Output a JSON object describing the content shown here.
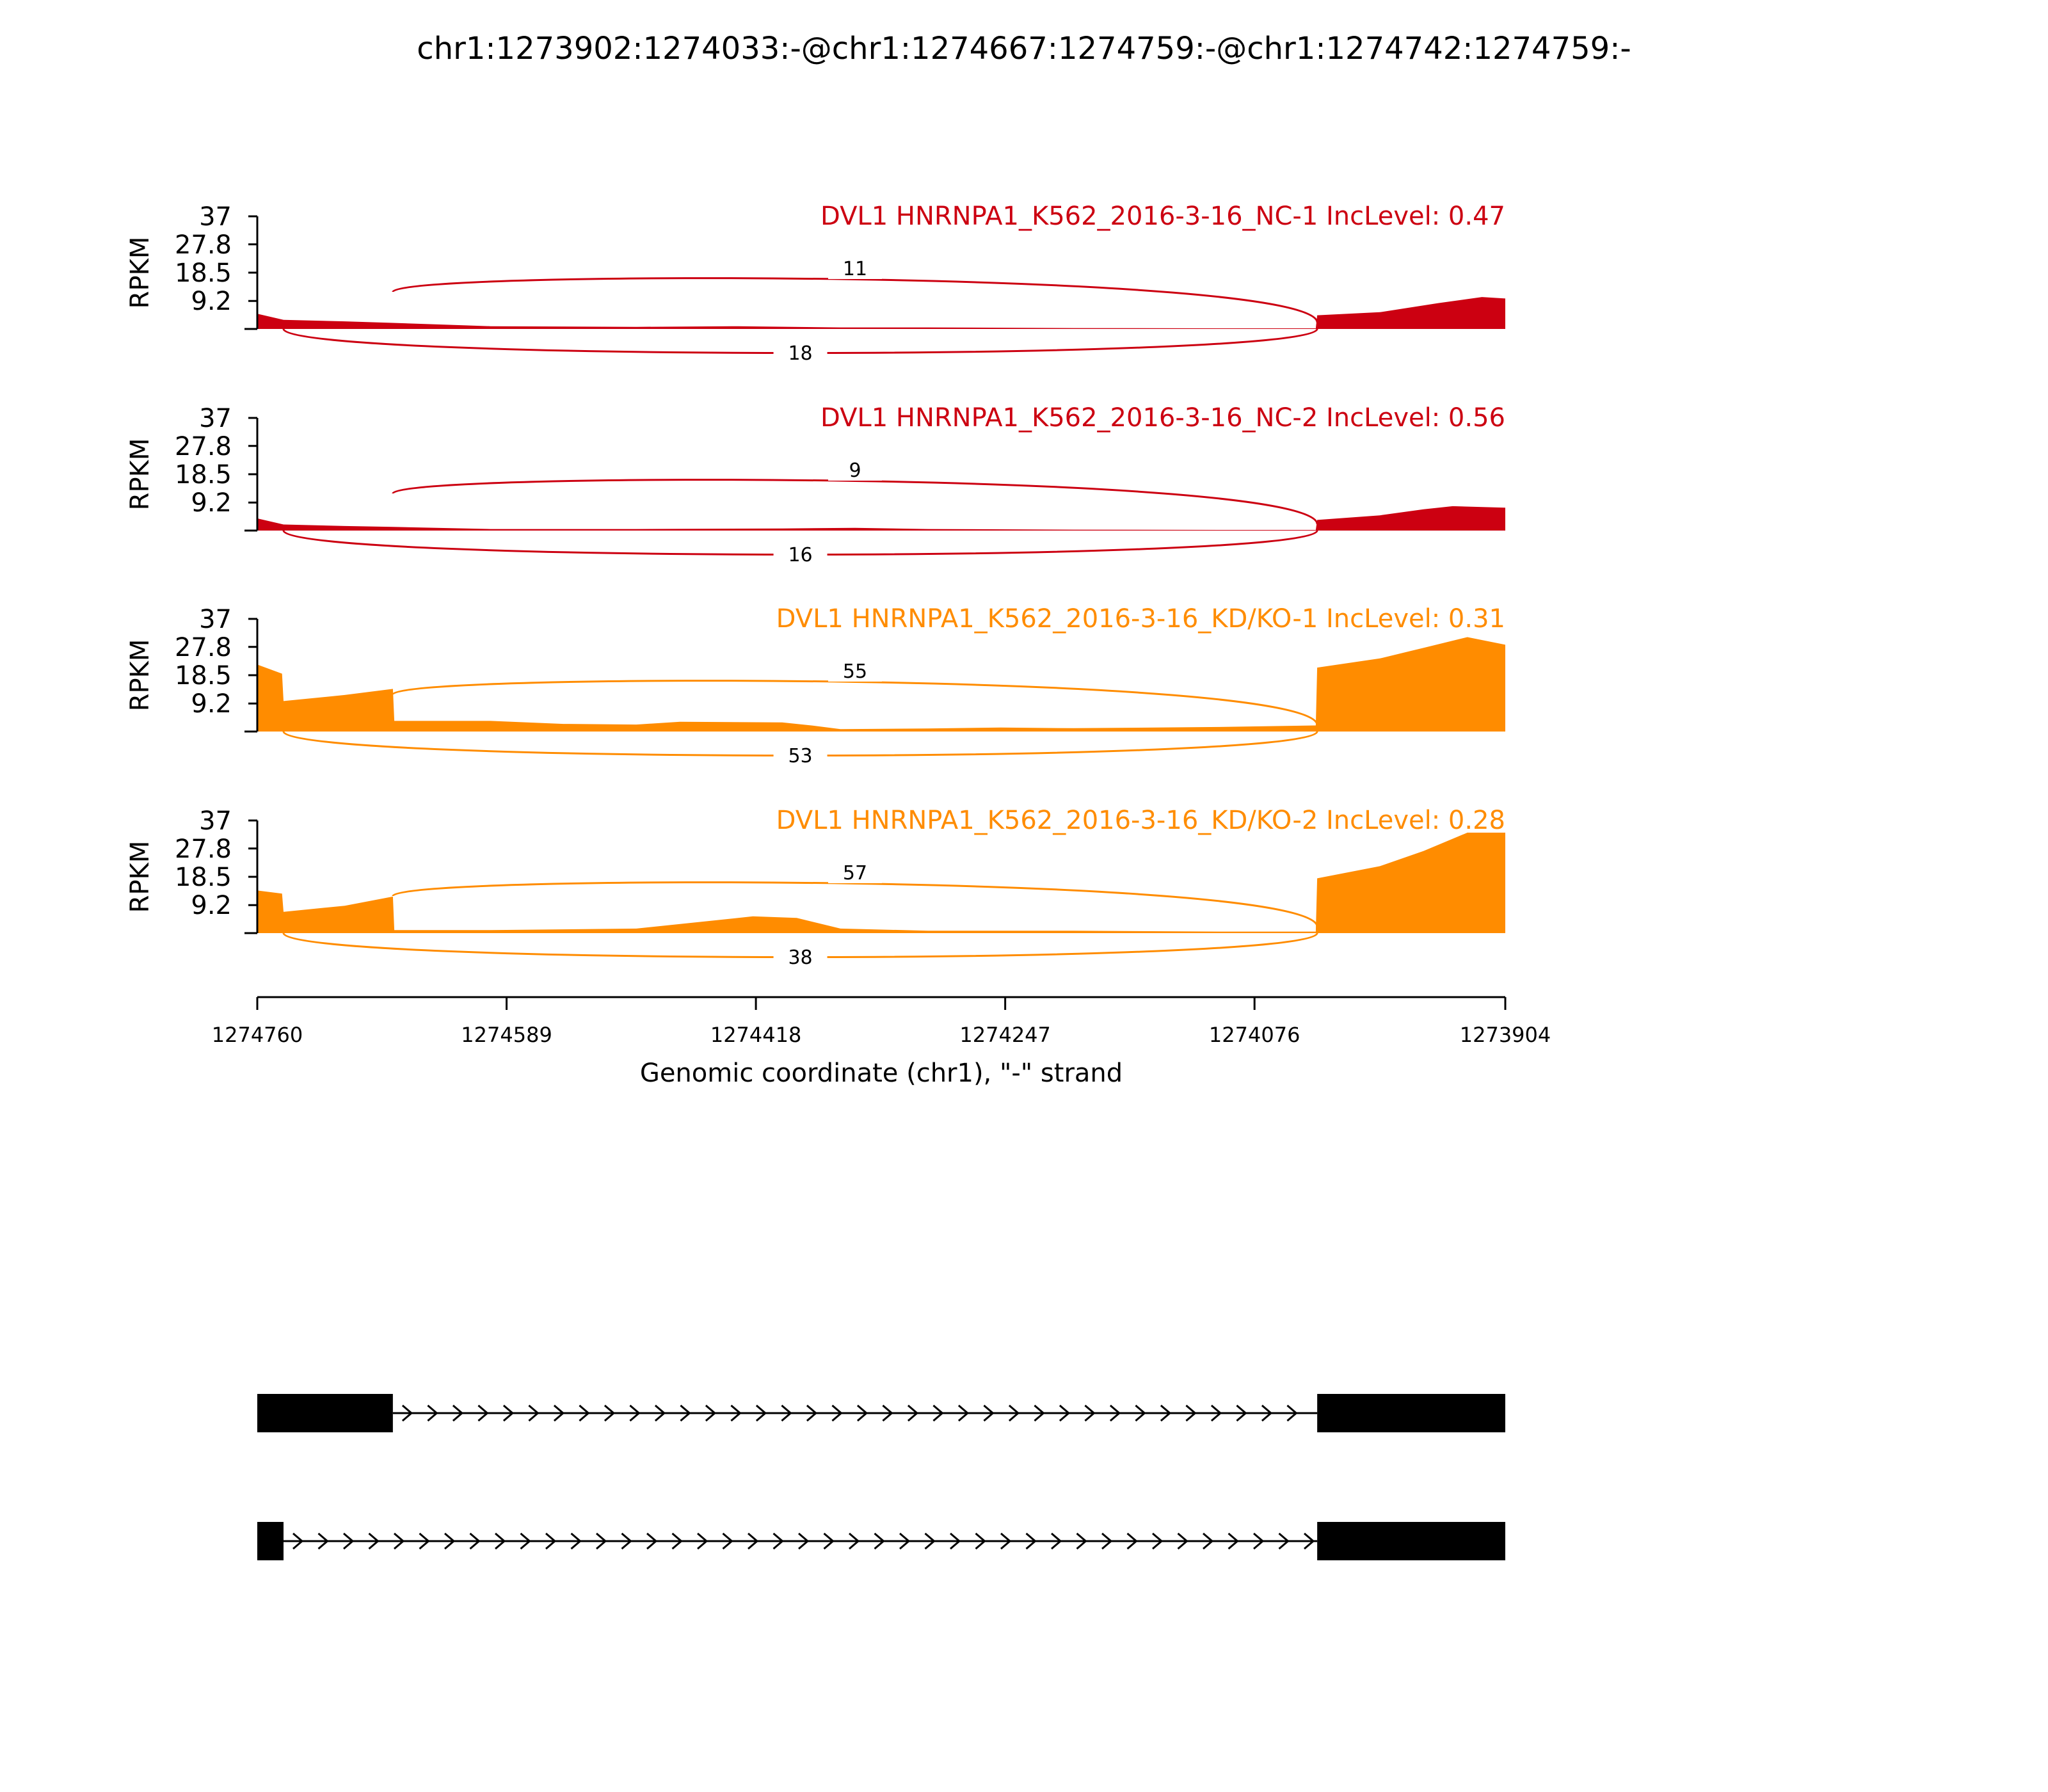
{
  "chart_data": {
    "type": "area",
    "title": "chr1:1273902:1274033:-@chr1:1274667:1274759:-@chr1:1274742:1274759:-",
    "xlabel": "Genomic coordinate (chr1), \"-\" strand",
    "ylabel": "RPKM",
    "xlim": [
      1274760,
      1273904
    ],
    "x_ticks": [
      "1274760",
      "1274589",
      "1274418",
      "1274247",
      "1274076",
      "1273904"
    ],
    "ylim": [
      0,
      37
    ],
    "y_ticks": [
      "37",
      "27.8",
      "18.5",
      "9.2"
    ],
    "grid": false,
    "upstream_exon": [
      1274760,
      1274667
    ],
    "short_exon": [
      1274760,
      1274742
    ],
    "downstream_exon": [
      1274033,
      1273904
    ],
    "tracks": [
      {
        "label": "DVL1 HNRNPA1_K562_2016-3-16_NC-1 IncLevel: 0.47",
        "color": "#cc0011",
        "inclusion_junction_reads": "11",
        "skipping_junction_reads": "18",
        "coverage_profile": [
          [
            1274760,
            5.0
          ],
          [
            1274742,
            3.0
          ],
          [
            1274700,
            2.5
          ],
          [
            1274667,
            2.0
          ],
          [
            1274600,
            0.9
          ],
          [
            1274500,
            0.7
          ],
          [
            1274430,
            0.9
          ],
          [
            1274360,
            0.5
          ],
          [
            1274300,
            0.5
          ],
          [
            1274200,
            0.3
          ],
          [
            1274100,
            0.2
          ],
          [
            1274034,
            0.2
          ],
          [
            1274033,
            4.5
          ],
          [
            1273990,
            5.5
          ],
          [
            1273950,
            8.5
          ],
          [
            1273920,
            10.5
          ],
          [
            1273904,
            10.0
          ]
        ]
      },
      {
        "label": "DVL1 HNRNPA1_K562_2016-3-16_NC-2 IncLevel: 0.56",
        "color": "#cc0011",
        "inclusion_junction_reads": "9",
        "skipping_junction_reads": "16",
        "coverage_profile": [
          [
            1274760,
            4.0
          ],
          [
            1274742,
            2.0
          ],
          [
            1274700,
            1.5
          ],
          [
            1274667,
            1.2
          ],
          [
            1274600,
            0.5
          ],
          [
            1274500,
            0.5
          ],
          [
            1274400,
            0.7
          ],
          [
            1274350,
            0.9
          ],
          [
            1274300,
            0.5
          ],
          [
            1274200,
            0.3
          ],
          [
            1274100,
            0.2
          ],
          [
            1274034,
            0.2
          ],
          [
            1274033,
            3.5
          ],
          [
            1273990,
            5.0
          ],
          [
            1273960,
            7.0
          ],
          [
            1273940,
            8.0
          ],
          [
            1273904,
            7.5
          ]
        ]
      },
      {
        "label": "DVL1 HNRNPA1_K562_2016-3-16_KD/KO-1 IncLevel: 0.31",
        "color": "#ff8c00",
        "inclusion_junction_reads": "55",
        "skipping_junction_reads": "53",
        "coverage_profile": [
          [
            1274760,
            22.0
          ],
          [
            1274743,
            19.0
          ],
          [
            1274742,
            10.0
          ],
          [
            1274700,
            12.0
          ],
          [
            1274667,
            14.0
          ],
          [
            1274666,
            3.5
          ],
          [
            1274600,
            3.5
          ],
          [
            1274550,
            2.5
          ],
          [
            1274500,
            2.3
          ],
          [
            1274470,
            3.2
          ],
          [
            1274400,
            3.0
          ],
          [
            1274380,
            2.0
          ],
          [
            1274360,
            0.8
          ],
          [
            1274300,
            1.0
          ],
          [
            1274250,
            1.3
          ],
          [
            1274200,
            1.1
          ],
          [
            1274100,
            1.5
          ],
          [
            1274034,
            2.0
          ],
          [
            1274033,
            21.0
          ],
          [
            1273990,
            24.0
          ],
          [
            1273960,
            27.5
          ],
          [
            1273930,
            31.0
          ],
          [
            1273904,
            28.5
          ]
        ]
      },
      {
        "label": "DVL1 HNRNPA1_K562_2016-3-16_KD/KO-2 IncLevel: 0.28",
        "color": "#ff8c00",
        "inclusion_junction_reads": "57",
        "skipping_junction_reads": "38",
        "coverage_profile": [
          [
            1274760,
            14.0
          ],
          [
            1274743,
            13.0
          ],
          [
            1274742,
            7.0
          ],
          [
            1274700,
            9.0
          ],
          [
            1274667,
            12.0
          ],
          [
            1274666,
            1.0
          ],
          [
            1274600,
            1.0
          ],
          [
            1274500,
            1.5
          ],
          [
            1274450,
            4.0
          ],
          [
            1274420,
            5.5
          ],
          [
            1274390,
            5.0
          ],
          [
            1274360,
            1.5
          ],
          [
            1274300,
            0.8
          ],
          [
            1274200,
            0.8
          ],
          [
            1274100,
            0.5
          ],
          [
            1274034,
            0.5
          ],
          [
            1274033,
            18.0
          ],
          [
            1273990,
            22.0
          ],
          [
            1273960,
            27.0
          ],
          [
            1273930,
            33.0
          ],
          [
            1273904,
            33.0
          ]
        ]
      }
    ],
    "transcripts": [
      {
        "exons": [
          [
            1274760,
            1274667
          ],
          [
            1274033,
            1273904
          ]
        ],
        "intron": [
          1274667,
          1274033
        ],
        "direction": ">"
      },
      {
        "exons": [
          [
            1274760,
            1274742
          ],
          [
            1274033,
            1273904
          ]
        ],
        "intron": [
          1274742,
          1274033
        ],
        "direction": ">"
      }
    ]
  }
}
